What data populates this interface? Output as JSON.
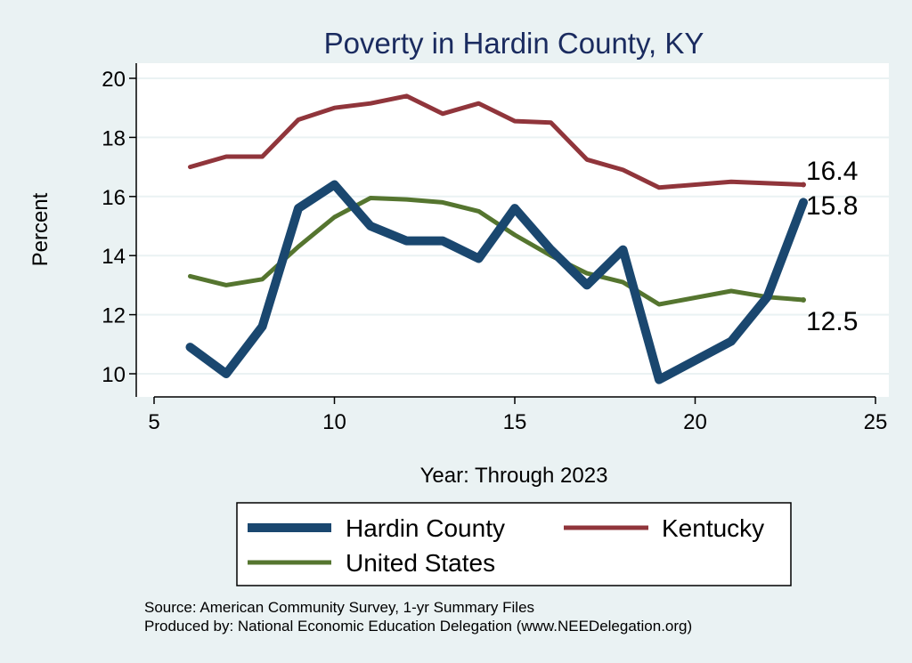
{
  "chart_data": {
    "type": "line",
    "title": "Poverty in Hardin County, KY",
    "xlabel": "Year: Through 2023",
    "ylabel": "Percent",
    "xlim": [
      5,
      25
    ],
    "ylim": [
      9.5,
      20.5
    ],
    "xticks": [
      5,
      10,
      15,
      20,
      25
    ],
    "yticks": [
      10,
      12,
      14,
      16,
      18,
      20
    ],
    "grid": true,
    "legend_position": "bottom",
    "series": [
      {
        "name": "Hardin County",
        "color": "#1a476f",
        "x": [
          6,
          7,
          8,
          9,
          10,
          11,
          12,
          13,
          14,
          15,
          16,
          17,
          18,
          19,
          21,
          22,
          23
        ],
        "y": [
          10.9,
          10.0,
          11.6,
          15.6,
          16.4,
          15.0,
          14.5,
          14.5,
          13.9,
          15.6,
          14.2,
          13.0,
          14.2,
          9.8,
          11.1,
          12.6,
          15.8
        ]
      },
      {
        "name": "Kentucky",
        "color": "#90353b",
        "x": [
          6,
          7,
          8,
          9,
          10,
          11,
          12,
          13,
          14,
          15,
          16,
          17,
          18,
          19,
          21,
          22,
          23
        ],
        "y": [
          17.0,
          17.35,
          17.35,
          18.6,
          19.0,
          19.15,
          19.4,
          18.8,
          19.15,
          18.55,
          18.5,
          17.25,
          16.9,
          16.3,
          16.5,
          16.45,
          16.4
        ]
      },
      {
        "name": "United States",
        "color": "#55752f",
        "x": [
          6,
          7,
          8,
          9,
          10,
          11,
          12,
          13,
          14,
          15,
          16,
          17,
          18,
          19,
          21,
          22,
          23
        ],
        "y": [
          13.3,
          13.0,
          13.2,
          14.3,
          15.3,
          15.95,
          15.9,
          15.8,
          15.5,
          14.7,
          14.0,
          13.4,
          13.1,
          12.35,
          12.8,
          12.6,
          12.5
        ]
      }
    ],
    "end_labels": [
      "16.4",
      "15.8",
      "12.5"
    ],
    "notes": [
      "Source: American Community Survey, 1-yr Summary Files",
      "Produced by: National Economic Education Delegation (www.NEEDelegation.org)"
    ]
  }
}
